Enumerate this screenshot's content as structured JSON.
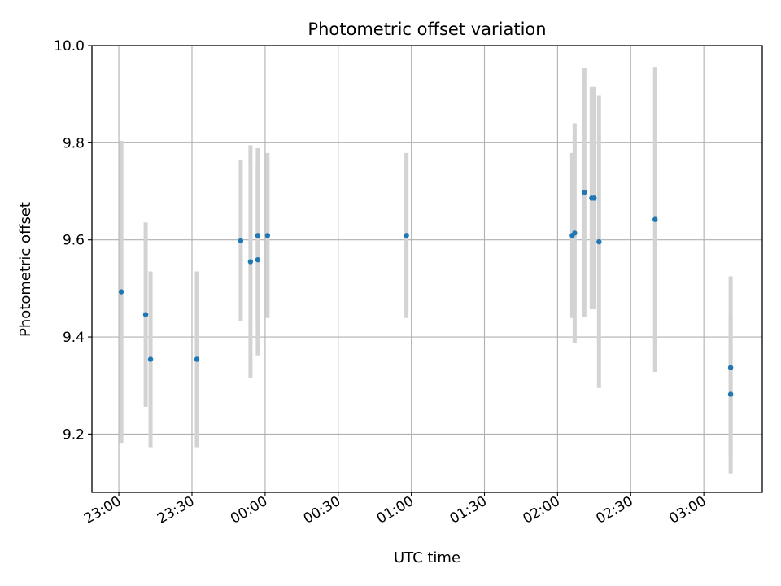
{
  "chart_data": {
    "type": "scatter",
    "title": "Photometric offset variation",
    "xlabel": "UTC time",
    "ylabel": "Photometric offset",
    "x_unit": "UTC",
    "x_ticks": [
      "23:00",
      "23:30",
      "00:00",
      "00:30",
      "01:00",
      "01:30",
      "02:00",
      "02:30",
      "03:00"
    ],
    "x_tick_times": [
      "22:59:59",
      "23:30:00",
      "00:00:01",
      "00:30:00",
      "01:00:00",
      "01:30:00",
      "02:00:00",
      "02:30:00",
      "03:00:00"
    ],
    "xlim": [
      "22:48:57",
      "03:23:59"
    ],
    "ylim": [
      9.08,
      10.0
    ],
    "y_ticks": [
      9.2,
      9.4,
      9.6,
      9.8,
      10.0
    ],
    "y_tick_labels": [
      "9.2",
      "9.4",
      "9.6",
      "9.8",
      "10.0"
    ],
    "grid": true,
    "errorbar_color": "#d3d3d3",
    "marker_color": "#1f77b4",
    "series": [
      {
        "points": [
          {
            "x": "23:01",
            "y": 9.493,
            "err": 0.311
          },
          {
            "x": "23:11",
            "y": 9.446,
            "err": 0.19
          },
          {
            "x": "23:13",
            "y": 9.354,
            "err": 0.181
          },
          {
            "x": "23:32",
            "y": 9.354,
            "err": 0.181
          },
          {
            "x": "23:50",
            "y": 9.598,
            "err": 0.166
          },
          {
            "x": "23:54",
            "y": 9.555,
            "err": 0.24
          },
          {
            "x": "23:57",
            "y": 9.559,
            "err": 0.197
          },
          {
            "x": "23:57",
            "y": 9.609,
            "err": 0.18
          },
          {
            "x": "00:01",
            "y": 9.609,
            "err": 0.17
          },
          {
            "x": "00:58",
            "y": 9.609,
            "err": 0.17
          },
          {
            "x": "02:06",
            "y": 9.609,
            "err": 0.17
          },
          {
            "x": "02:07",
            "y": 9.614,
            "err": 0.226
          },
          {
            "x": "02:11",
            "y": 9.698,
            "err": 0.256
          },
          {
            "x": "02:14",
            "y": 9.686,
            "err": 0.229
          },
          {
            "x": "02:15",
            "y": 9.686,
            "err": 0.229
          },
          {
            "x": "02:17",
            "y": 9.596,
            "err": 0.301
          },
          {
            "x": "02:40",
            "y": 9.642,
            "err": 0.314
          },
          {
            "x": "03:11",
            "y": 9.337,
            "err": 0.188
          },
          {
            "x": "03:11",
            "y": 9.282,
            "err": 0.163
          }
        ]
      }
    ]
  }
}
